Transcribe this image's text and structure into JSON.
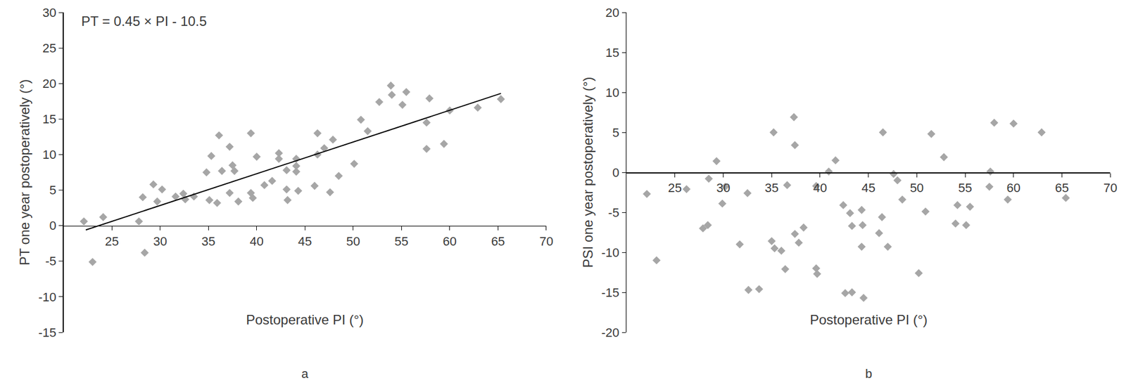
{
  "chart_data": [
    {
      "type": "scatter",
      "caption": "a",
      "x_label": "Postoperative PI (°)",
      "y_label": "PT one year postoperatively (°)",
      "annotations": [
        "PT = 0.45 × PI - 10.5"
      ],
      "xlim": [
        20,
        70
      ],
      "xticks": [
        25,
        30,
        35,
        40,
        45,
        50,
        55,
        60,
        65,
        70
      ],
      "ylim": [
        -15,
        30
      ],
      "yticks": [
        -15,
        -10,
        -5,
        0,
        5,
        10,
        15,
        20,
        25,
        30
      ],
      "grid": false,
      "series": [
        {
          "type": "scatter",
          "marker": "diamond",
          "color": "#a6a6a6",
          "x": [
            22.1,
            23.0,
            24.1,
            27.8,
            28.2,
            28.4,
            29.3,
            29.7,
            30.2,
            31.6,
            32.4,
            32.6,
            33.5,
            34.8,
            35.1,
            35.3,
            35.9,
            36.1,
            36.4,
            37.2,
            37.2,
            37.5,
            37.7,
            38.1,
            39.4,
            39.4,
            39.6,
            40.0,
            40.8,
            41.6,
            42.3,
            42.3,
            43.1,
            43.1,
            43.2,
            44.1,
            44.1,
            44.1,
            44.3,
            46.0,
            46.3,
            46.3,
            47.0,
            47.6,
            47.9,
            48.5,
            50.1,
            50.8,
            51.5,
            52.7,
            53.9,
            54.0,
            55.1,
            55.5,
            57.6,
            57.6,
            57.9,
            59.4,
            60.0,
            62.9,
            65.3
          ],
          "values": [
            0.6,
            -5.1,
            1.2,
            0.6,
            4.0,
            -3.8,
            5.8,
            3.4,
            5.1,
            4.1,
            4.5,
            3.7,
            4.1,
            7.5,
            3.6,
            9.8,
            3.2,
            12.7,
            7.7,
            11.1,
            4.6,
            8.5,
            7.7,
            3.4,
            13.0,
            4.6,
            3.9,
            9.7,
            5.7,
            6.3,
            10.2,
            9.4,
            7.8,
            5.1,
            3.6,
            9.4,
            8.4,
            7.6,
            4.9,
            5.6,
            13.0,
            10.0,
            10.9,
            4.7,
            12.1,
            7.0,
            8.7,
            14.9,
            13.3,
            17.4,
            19.7,
            18.4,
            17.0,
            18.8,
            14.5,
            10.8,
            17.9,
            11.5,
            16.2,
            16.6,
            17.8
          ]
        },
        {
          "type": "line",
          "line_style": "solid",
          "color": "#000000",
          "x": [
            22.3,
            65.3
          ],
          "values": [
            -0.6,
            18.6
          ]
        }
      ]
    },
    {
      "type": "scatter",
      "caption": "b",
      "x_label": "Postoperative PI (°)",
      "y_label": "PSI one year postoperatively (°)",
      "xlim": [
        20,
        70
      ],
      "xticks": [
        25,
        30,
        35,
        40,
        45,
        50,
        55,
        60,
        65,
        70
      ],
      "ylim": [
        -20,
        20
      ],
      "yticks": [
        -20,
        -15,
        -10,
        -5,
        0,
        5,
        10,
        15,
        20
      ],
      "grid": false,
      "series": [
        {
          "type": "scatter",
          "marker": "diamond",
          "color": "#a6a6a6",
          "x": [
            22.1,
            23.1,
            26.2,
            27.9,
            28.4,
            28.5,
            29.3,
            29.9,
            30.2,
            31.7,
            32.5,
            32.6,
            33.7,
            35.0,
            35.2,
            35.3,
            36.0,
            36.4,
            36.6,
            37.3,
            37.4,
            37.4,
            37.8,
            38.3,
            39.6,
            39.6,
            39.7,
            40.9,
            41.6,
            42.4,
            42.6,
            43.1,
            43.3,
            43.3,
            44.3,
            44.3,
            44.4,
            44.5,
            46.1,
            46.4,
            46.5,
            47.0,
            47.6,
            48.0,
            48.5,
            50.2,
            50.9,
            51.5,
            52.8,
            54.0,
            54.2,
            55.1,
            55.5,
            57.5,
            57.6,
            58.0,
            59.4,
            60.0,
            62.9,
            65.4
          ],
          "values": [
            -2.7,
            -11.0,
            -2.1,
            -7.0,
            -6.6,
            -0.8,
            1.4,
            -3.9,
            -1.8,
            -9.0,
            -2.6,
            -14.7,
            -14.6,
            -8.6,
            5.0,
            -9.5,
            -9.8,
            -12.1,
            -1.6,
            6.9,
            3.4,
            -7.7,
            -8.8,
            -6.9,
            -1.7,
            -12.0,
            -12.7,
            0.1,
            1.5,
            -4.1,
            -15.1,
            -5.1,
            -6.7,
            -15.0,
            -4.7,
            -9.3,
            -6.6,
            -15.7,
            -7.6,
            -5.6,
            5.0,
            -9.3,
            -0.2,
            -1.0,
            -3.4,
            -12.6,
            -4.9,
            4.8,
            1.9,
            -6.4,
            -4.1,
            -6.6,
            -4.3,
            -1.8,
            0.1,
            6.2,
            -3.4,
            6.1,
            5.0,
            -3.2
          ]
        }
      ]
    }
  ]
}
